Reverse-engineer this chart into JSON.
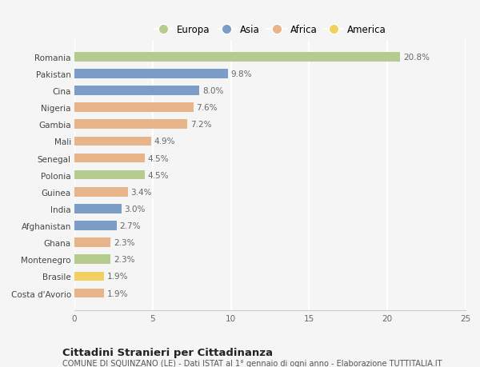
{
  "countries": [
    "Romania",
    "Pakistan",
    "Cina",
    "Nigeria",
    "Gambia",
    "Mali",
    "Senegal",
    "Polonia",
    "Guinea",
    "India",
    "Afghanistan",
    "Ghana",
    "Montenegro",
    "Brasile",
    "Costa d'Avorio"
  ],
  "values": [
    20.8,
    9.8,
    8.0,
    7.6,
    7.2,
    4.9,
    4.5,
    4.5,
    3.4,
    3.0,
    2.7,
    2.3,
    2.3,
    1.9,
    1.9
  ],
  "continents": [
    "Europa",
    "Asia",
    "Asia",
    "Africa",
    "Africa",
    "Africa",
    "Africa",
    "Europa",
    "Africa",
    "Asia",
    "Asia",
    "Africa",
    "Europa",
    "America",
    "Africa"
  ],
  "colors": {
    "Europa": "#b5cc8e",
    "Asia": "#7b9dc7",
    "Africa": "#e8b48a",
    "America": "#f0d060"
  },
  "legend_order": [
    "Europa",
    "Asia",
    "Africa",
    "America"
  ],
  "title": "Cittadini Stranieri per Cittadinanza",
  "subtitle": "COMUNE DI SQUINZANO (LE) - Dati ISTAT al 1° gennaio di ogni anno - Elaborazione TUTTITALIA.IT",
  "xlim": [
    0,
    25
  ],
  "xticks": [
    0,
    5,
    10,
    15,
    20,
    25
  ],
  "bg_color": "#f5f5f5",
  "plot_bg_color": "#f5f5f5",
  "grid_color": "#ffffff",
  "bar_height": 0.55,
  "label_fontsize": 7.5,
  "tick_fontsize": 7.5
}
